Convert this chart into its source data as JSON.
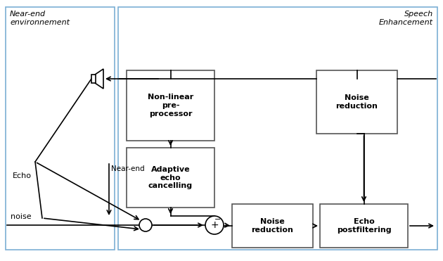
{
  "fig_width": 6.3,
  "fig_height": 3.71,
  "dpi": 100,
  "bg_color": "#ffffff",
  "border_color": "#7BAFD4",
  "box_edge_color": "#555555",
  "line_color": "#000000",
  "text_color": "#000000",
  "label_near_end_env": "Near-end\nenvironnement",
  "label_speech_enh": "Speech\nEnhancement",
  "label_nonlinear": "Non-linear\npre-\nprocessor",
  "label_adaptive": "Adaptive\necho\ncancelling",
  "label_noise_red_top": "Noise\nreduction",
  "label_noise_red_bot": "Noise\nreduction",
  "label_echo_post": "Echo\npostfiltering",
  "label_near_end": "Near-end",
  "label_echo": "Echo",
  "label_noise": "noise"
}
